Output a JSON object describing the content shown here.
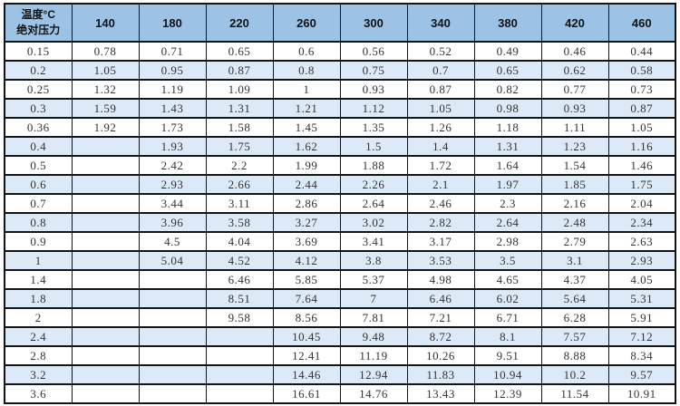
{
  "colors": {
    "header_bg": "#9CC2E5",
    "band_bg": "#DCE9F7",
    "row_bg": "#FFFFFF",
    "border": "#141414",
    "text": "#333333",
    "header_text": "#111111"
  },
  "chart_data": {
    "type": "table",
    "title": "",
    "corner_line1": "温度°C",
    "corner_line2": "绝对压力",
    "columns": [
      "140",
      "180",
      "220",
      "260",
      "300",
      "340",
      "380",
      "420",
      "460"
    ],
    "rows": [
      {
        "pressure": "0.15",
        "values": [
          "0.78",
          "0.71",
          "0.65",
          "0.6",
          "0.56",
          "0.52",
          "0.49",
          "0.46",
          "0.44"
        ]
      },
      {
        "pressure": "0.2",
        "values": [
          "1.05",
          "0.95",
          "0.87",
          "0.8",
          "0.75",
          "0.7",
          "0.65",
          "0.62",
          "0.58"
        ]
      },
      {
        "pressure": "0.25",
        "values": [
          "1.32",
          "1.19",
          "1.09",
          "1",
          "0.93",
          "0.87",
          "0.82",
          "0.77",
          "0.73"
        ]
      },
      {
        "pressure": "0.3",
        "values": [
          "1.59",
          "1.43",
          "1.31",
          "1.21",
          "1.12",
          "1.05",
          "0.98",
          "0.93",
          "0.87"
        ]
      },
      {
        "pressure": "0.36",
        "values": [
          "1.92",
          "1.73",
          "1.58",
          "1.45",
          "1.35",
          "1.26",
          "1.18",
          "1.11",
          "1.05"
        ]
      },
      {
        "pressure": "0.4",
        "values": [
          "",
          "1.93",
          "1.75",
          "1.62",
          "1.5",
          "1.4",
          "1.31",
          "1.23",
          "1.16"
        ]
      },
      {
        "pressure": "0.5",
        "values": [
          "",
          "2.42",
          "2.2",
          "1.99",
          "1.88",
          "1.72",
          "1.64",
          "1.54",
          "1.46"
        ]
      },
      {
        "pressure": "0.6",
        "values": [
          "",
          "2.93",
          "2.66",
          "2.44",
          "2.26",
          "2.1",
          "1.97",
          "1.85",
          "1.75"
        ]
      },
      {
        "pressure": "0.7",
        "values": [
          "",
          "3.44",
          "3.11",
          "2.86",
          "2.64",
          "2.46",
          "2.3",
          "2.16",
          "2.04"
        ]
      },
      {
        "pressure": "0.8",
        "values": [
          "",
          "3.96",
          "3.58",
          "3.27",
          "3.02",
          "2.82",
          "2.64",
          "2.48",
          "2.34"
        ]
      },
      {
        "pressure": "0.9",
        "values": [
          "",
          "4.5",
          "4.04",
          "3.69",
          "3.41",
          "3.17",
          "2.98",
          "2.79",
          "2.63"
        ]
      },
      {
        "pressure": "1",
        "values": [
          "",
          "5.04",
          "4.52",
          "4.12",
          "3.8",
          "3.53",
          "3.5",
          "3.1",
          "2.93"
        ]
      },
      {
        "pressure": "1.4",
        "values": [
          "",
          "",
          "6.46",
          "5.85",
          "5.37",
          "4.98",
          "4.65",
          "4.37",
          "4.05"
        ]
      },
      {
        "pressure": "1.8",
        "values": [
          "",
          "",
          "8.51",
          "7.64",
          "7",
          "6.46",
          "6.02",
          "5.64",
          "5.31"
        ]
      },
      {
        "pressure": "2",
        "values": [
          "",
          "",
          "9.58",
          "8.56",
          "7.81",
          "7.21",
          "6.71",
          "6.28",
          "5.91"
        ]
      },
      {
        "pressure": "2.4",
        "values": [
          "",
          "",
          "",
          "10.45",
          "9.48",
          "8.72",
          "8.1",
          "7.57",
          "7.12"
        ]
      },
      {
        "pressure": "2.8",
        "values": [
          "",
          "",
          "",
          "12.41",
          "11.19",
          "10.26",
          "9.51",
          "8.88",
          "8.34"
        ]
      },
      {
        "pressure": "3.2",
        "values": [
          "",
          "",
          "",
          "14.46",
          "12.94",
          "11.83",
          "10.94",
          "10.2",
          "9.57"
        ]
      },
      {
        "pressure": "3.6",
        "values": [
          "",
          "",
          "",
          "16.61",
          "14.76",
          "13.43",
          "12.39",
          "11.54",
          "10.91"
        ]
      }
    ]
  }
}
